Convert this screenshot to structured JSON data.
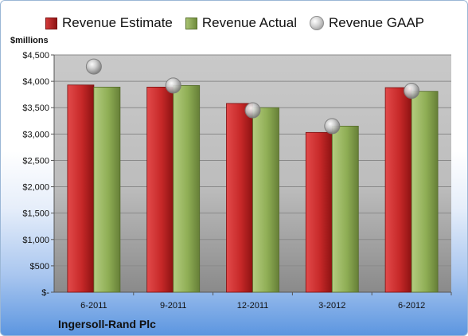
{
  "legend": {
    "estimate": "Revenue Estimate",
    "actual": "Revenue Actual",
    "gaap": "Revenue GAAP"
  },
  "y_unit_label": "$millions",
  "company": "Ingersoll-Rand Plc",
  "colors": {
    "estimate": "#c62828",
    "actual": "#8fae55",
    "gaap": "#c8c8c8",
    "plot_bg_top": "#c8c8c8",
    "plot_bg_bottom": "#8c8c8c"
  },
  "chart_data": {
    "type": "bar",
    "categories": [
      "6-2011",
      "9-2011",
      "12-2011",
      "3-2012",
      "6-2012"
    ],
    "series": [
      {
        "name": "Revenue Estimate",
        "values": [
          3930,
          3890,
          3580,
          3030,
          3880
        ]
      },
      {
        "name": "Revenue Actual",
        "values": [
          3890,
          3920,
          3500,
          3150,
          3810
        ]
      },
      {
        "name": "Revenue GAAP",
        "values": [
          4280,
          3920,
          3450,
          3150,
          3820
        ]
      }
    ],
    "ylim": [
      0,
      4500
    ],
    "yticks": [
      {
        "value": 0,
        "label": "$-"
      },
      {
        "value": 500,
        "label": "$500"
      },
      {
        "value": 1000,
        "label": "$1,000"
      },
      {
        "value": 1500,
        "label": "$1,500"
      },
      {
        "value": 2000,
        "label": "$2,000"
      },
      {
        "value": 2500,
        "label": "$2,500"
      },
      {
        "value": 3000,
        "label": "$3,000"
      },
      {
        "value": 3500,
        "label": "$3,500"
      },
      {
        "value": 4000,
        "label": "$4,000"
      },
      {
        "value": 4500,
        "label": "$4,500"
      }
    ],
    "grid": true,
    "legend_position": "top"
  }
}
